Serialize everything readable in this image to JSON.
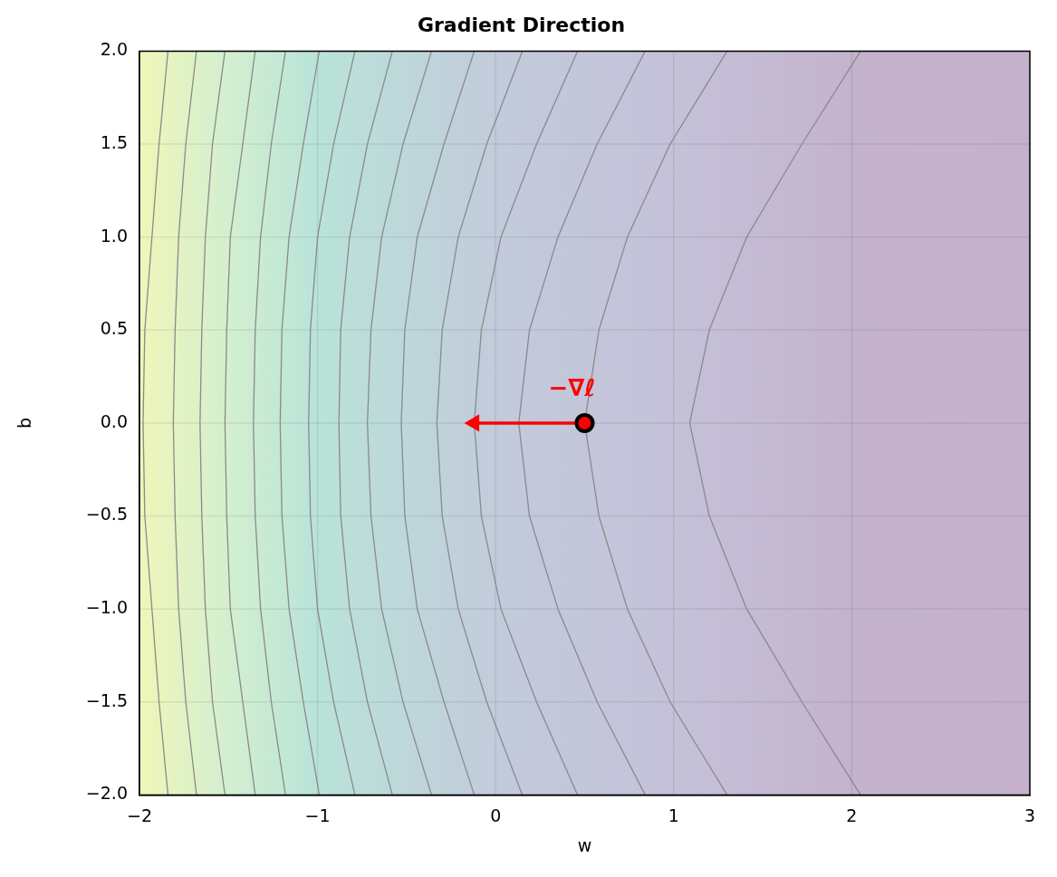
{
  "chart_data": {
    "type": "line",
    "title": "Gradient Direction",
    "xlabel": "w",
    "ylabel": "b",
    "xlim": [
      -2,
      3
    ],
    "ylim": [
      -2,
      2
    ],
    "xticks": [
      {
        "value": -2,
        "label": "−2"
      },
      {
        "value": -1,
        "label": "−1"
      },
      0,
      1,
      2,
      3
    ],
    "yticks": [
      {
        "value": -2,
        "label": "−2.0"
      },
      {
        "value": -1.5,
        "label": "−1.5"
      },
      {
        "value": -1,
        "label": "−1.0"
      },
      {
        "value": -0.5,
        "label": "−0.5"
      },
      {
        "value": 0,
        "label": "0.0"
      },
      {
        "value": 0.5,
        "label": "0.5"
      },
      {
        "value": 1,
        "label": "1.0"
      },
      {
        "value": 1.5,
        "label": "1.5"
      },
      {
        "value": 2,
        "label": "2.0"
      }
    ],
    "grid": true,
    "legend": false,
    "marker": "none",
    "series": [
      {
        "color": "#8a8a8a",
        "x": [
          -1.84,
          -1.89,
          -1.93,
          -1.97,
          -1.98,
          -1.97,
          -1.93,
          -1.89,
          -1.84
        ],
        "values": [
          -2,
          -1.5,
          -1,
          -0.5,
          0,
          0.5,
          1,
          1.5,
          2
        ]
      },
      {
        "color": "#8a8a8a",
        "x": [
          -1.68,
          -1.74,
          -1.78,
          -1.8,
          -1.81,
          -1.8,
          -1.78,
          -1.74,
          -1.68
        ],
        "values": [
          -2,
          -1.5,
          -1,
          -0.5,
          0,
          0.5,
          1,
          1.5,
          2
        ]
      },
      {
        "color": "#8a8a8a",
        "x": [
          -1.52,
          -1.59,
          -1.63,
          -1.65,
          -1.66,
          -1.65,
          -1.63,
          -1.59,
          -1.52
        ],
        "values": [
          -2,
          -1.5,
          -1,
          -0.5,
          0,
          0.5,
          1,
          1.5,
          2
        ]
      },
      {
        "color": "#8a8a8a",
        "x": [
          -1.35,
          -1.42,
          -1.49,
          -1.51,
          -1.52,
          -1.51,
          -1.49,
          -1.42,
          -1.35
        ],
        "values": [
          -2,
          -1.5,
          -1,
          -0.5,
          0,
          0.5,
          1,
          1.5,
          2
        ]
      },
      {
        "color": "#8a8a8a",
        "x": [
          -1.18,
          -1.26,
          -1.32,
          -1.35,
          -1.36,
          -1.35,
          -1.32,
          -1.26,
          -1.18
        ],
        "values": [
          -2,
          -1.5,
          -1,
          -0.5,
          0,
          0.5,
          1,
          1.5,
          2
        ]
      },
      {
        "color": "#8a8a8a",
        "x": [
          -0.99,
          -1.08,
          -1.16,
          -1.2,
          -1.21,
          -1.2,
          -1.16,
          -1.08,
          -0.99
        ],
        "values": [
          -2,
          -1.5,
          -1,
          -0.5,
          0,
          0.5,
          1,
          1.5,
          2
        ]
      },
      {
        "color": "#8a8a8a",
        "x": [
          -0.79,
          -0.91,
          -1.0,
          -1.04,
          -1.05,
          -1.04,
          -1.0,
          -0.91,
          -0.79
        ],
        "values": [
          -2,
          -1.5,
          -1,
          -0.5,
          0,
          0.5,
          1,
          1.5,
          2
        ]
      },
      {
        "color": "#8a8a8a",
        "x": [
          -0.58,
          -0.72,
          -0.82,
          -0.87,
          -0.88,
          -0.87,
          -0.82,
          -0.72,
          -0.58
        ],
        "values": [
          -2,
          -1.5,
          -1,
          -0.5,
          0,
          0.5,
          1,
          1.5,
          2
        ]
      },
      {
        "color": "#8a8a8a",
        "x": [
          -0.36,
          -0.52,
          -0.64,
          -0.7,
          -0.72,
          -0.7,
          -0.64,
          -0.52,
          -0.36
        ],
        "values": [
          -2,
          -1.5,
          -1,
          -0.5,
          0,
          0.5,
          1,
          1.5,
          2
        ]
      },
      {
        "color": "#8a8a8a",
        "x": [
          -0.12,
          -0.29,
          -0.44,
          -0.51,
          -0.53,
          -0.51,
          -0.44,
          -0.29,
          -0.12
        ],
        "values": [
          -2,
          -1.5,
          -1,
          -0.5,
          0,
          0.5,
          1,
          1.5,
          2
        ]
      },
      {
        "color": "#8a8a8a",
        "x": [
          0.15,
          -0.05,
          -0.21,
          -0.3,
          -0.33,
          -0.3,
          -0.21,
          -0.05,
          0.15
        ],
        "values": [
          -2,
          -1.5,
          -1,
          -0.5,
          0,
          0.5,
          1,
          1.5,
          2
        ]
      },
      {
        "color": "#8a8a8a",
        "x": [
          0.46,
          0.23,
          0.03,
          -0.08,
          -0.12,
          -0.08,
          0.03,
          0.23,
          0.46
        ],
        "values": [
          -2,
          -1.5,
          -1,
          -0.5,
          0,
          0.5,
          1,
          1.5,
          2
        ]
      },
      {
        "color": "#8a8a8a",
        "x": [
          0.84,
          0.57,
          0.35,
          0.19,
          0.13,
          0.19,
          0.35,
          0.57,
          0.84
        ],
        "values": [
          -2,
          -1.5,
          -1,
          -0.5,
          0,
          0.5,
          1,
          1.5,
          2
        ]
      },
      {
        "color": "#8a8a8a",
        "x": [
          1.3,
          0.98,
          0.74,
          0.58,
          0.5,
          0.58,
          0.74,
          0.98,
          1.3
        ],
        "values": [
          -2,
          -1.5,
          -1,
          -0.5,
          0,
          0.5,
          1,
          1.5,
          2
        ]
      },
      {
        "color": "#8a8a8a",
        "x": [
          2.05,
          1.72,
          1.41,
          1.2,
          1.09,
          1.2,
          1.41,
          1.72,
          2.05
        ],
        "values": [
          -2,
          -1.5,
          -1,
          -0.5,
          0,
          0.5,
          1,
          1.5,
          2
        ]
      },
      {
        "marker": "triangle",
        "color": "#ff0000",
        "x": [
          0.5,
          -0.12
        ],
        "values": [
          0,
          0
        ]
      },
      {
        "type": "scatter",
        "marker": "circle",
        "color": "#ff0000",
        "x": [
          0.5
        ],
        "values": [
          0
        ]
      }
    ],
    "annotations": [
      {
        "text": "−∇ℓ",
        "x": 0.5,
        "y": 0
      }
    ]
  }
}
